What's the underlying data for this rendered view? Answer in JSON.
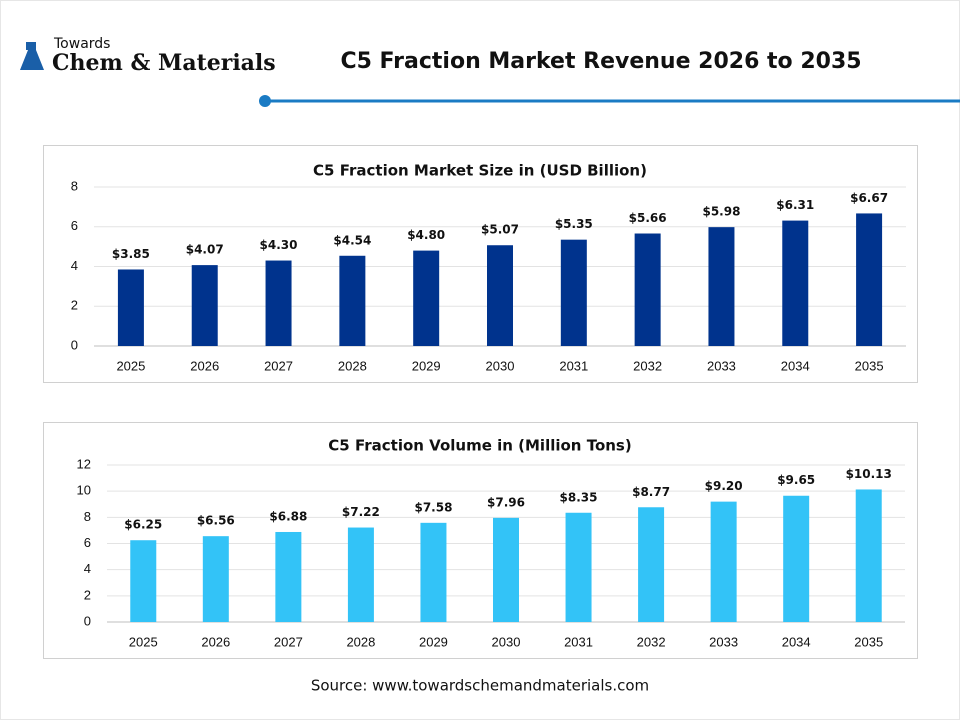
{
  "header": {
    "brand_top": "Towards",
    "brand": "Chem & Materials",
    "title": "C5 Fraction Market Revenue 2026 to 2035"
  },
  "chart_data": [
    {
      "type": "bar",
      "title": "C5 Fraction Market Size in (USD Billion)",
      "categories": [
        "2025",
        "2026",
        "2027",
        "2028",
        "2029",
        "2030",
        "2031",
        "2032",
        "2033",
        "2034",
        "2035"
      ],
      "values": [
        3.85,
        4.07,
        4.3,
        4.54,
        4.8,
        5.07,
        5.35,
        5.66,
        5.98,
        6.31,
        6.67
      ],
      "value_labels": [
        "$3.85",
        "$4.07",
        "$4.30",
        "$4.54",
        "$4.80",
        "$5.07",
        "$5.35",
        "$5.66",
        "$5.98",
        "$6.31",
        "$6.67"
      ],
      "color": "#00338d",
      "ylim": [
        0,
        8
      ],
      "yticks": [
        0,
        2,
        4,
        6,
        8
      ],
      "grid": true
    },
    {
      "type": "bar",
      "title": "C5 Fraction Volume in (Million Tons)",
      "categories": [
        "2025",
        "2026",
        "2027",
        "2028",
        "2029",
        "2030",
        "2031",
        "2032",
        "2033",
        "2034",
        "2035"
      ],
      "values": [
        6.25,
        6.56,
        6.88,
        7.22,
        7.58,
        7.96,
        8.35,
        8.77,
        9.2,
        9.65,
        10.13
      ],
      "value_labels": [
        "$6.25",
        "$6.56",
        "$6.88",
        "$7.22",
        "$7.58",
        "$7.96",
        "$8.35",
        "$8.77",
        "$9.20",
        "$9.65",
        "$10.13"
      ],
      "color": "#33c3f7",
      "ylim": [
        0,
        12
      ],
      "yticks": [
        0,
        2,
        4,
        6,
        8,
        10,
        12
      ],
      "grid": true
    }
  ],
  "source": "Source: www.towardschemandmaterials.com"
}
